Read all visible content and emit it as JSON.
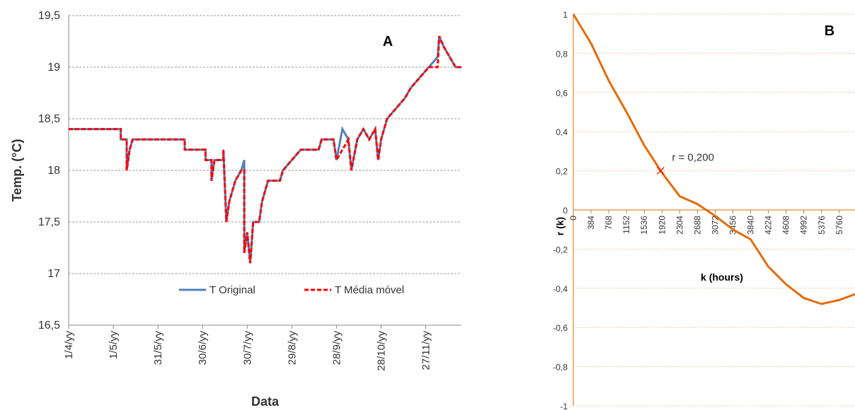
{
  "chart_data": [
    {
      "type": "line",
      "panel_label": "A",
      "xlabel": "Data",
      "ylabel": "Temp. (°C)",
      "x": [
        0,
        35,
        35,
        39,
        39,
        41,
        43,
        78,
        78,
        92,
        92,
        96,
        96,
        98,
        104,
        104,
        106,
        108,
        112,
        116,
        118,
        118,
        120,
        122,
        124,
        128,
        130,
        134,
        142,
        144,
        150,
        156,
        168,
        170,
        178,
        180,
        184,
        188,
        190,
        194,
        198,
        202,
        206,
        208,
        210,
        214,
        220,
        226,
        230,
        236,
        242,
        248,
        249,
        252,
        256,
        260,
        264
      ],
      "series": [
        {
          "name": "T Original",
          "color": "#4f81bd",
          "dashed": false,
          "values": [
            18.4,
            18.4,
            18.3,
            18.3,
            18.0,
            18.2,
            18.3,
            18.3,
            18.2,
            18.2,
            18.1,
            18.1,
            17.9,
            18.1,
            18.1,
            18.2,
            17.5,
            17.7,
            17.9,
            18.0,
            18.1,
            17.2,
            17.4,
            17.1,
            17.5,
            17.5,
            17.7,
            17.9,
            17.9,
            18.0,
            18.1,
            18.2,
            18.2,
            18.3,
            18.3,
            18.1,
            18.4,
            18.3,
            18.0,
            18.3,
            18.4,
            18.3,
            18.4,
            18.1,
            18.3,
            18.5,
            18.6,
            18.7,
            18.8,
            18.9,
            19.0,
            19.1,
            19.3,
            19.2,
            19.1,
            19.0,
            19.0
          ]
        },
        {
          "name": "T Média móvel",
          "color": "#ff0000",
          "dashed": true,
          "values": [
            18.4,
            18.4,
            18.3,
            18.3,
            18.0,
            18.2,
            18.3,
            18.3,
            18.2,
            18.2,
            18.1,
            18.1,
            17.9,
            18.1,
            18.1,
            18.2,
            17.5,
            17.7,
            17.9,
            18.0,
            18.0,
            17.2,
            17.4,
            17.1,
            17.5,
            17.5,
            17.7,
            17.9,
            17.9,
            18.0,
            18.1,
            18.2,
            18.2,
            18.3,
            18.3,
            18.1,
            18.2,
            18.3,
            18.0,
            18.3,
            18.4,
            18.3,
            18.4,
            18.1,
            18.3,
            18.5,
            18.6,
            18.7,
            18.8,
            18.9,
            19.0,
            19.0,
            19.3,
            19.2,
            19.1,
            19.0,
            19.0
          ]
        }
      ],
      "xlim": [
        0,
        264
      ],
      "xticks": [
        {
          "value": 0,
          "label": "1/4/yy"
        },
        {
          "value": 30,
          "label": "1/5/yy"
        },
        {
          "value": 60,
          "label": "31/5/yy"
        },
        {
          "value": 90,
          "label": "30/6/yy"
        },
        {
          "value": 120,
          "label": "30/7/yy"
        },
        {
          "value": 150,
          "label": "29/8/yy"
        },
        {
          "value": 180,
          "label": "28/9/yy"
        },
        {
          "value": 210,
          "label": "28/10/yy"
        },
        {
          "value": 240,
          "label": "27/11/yy"
        }
      ],
      "ylim": [
        16.5,
        19.5
      ],
      "yticks": [
        {
          "value": 16.5,
          "label": "16,5"
        },
        17,
        {
          "value": 17.5,
          "label": "17,5"
        },
        18,
        {
          "value": 18.5,
          "label": "18,5"
        },
        19,
        {
          "value": 19.5,
          "label": "19,5"
        }
      ],
      "grid": true,
      "legend": "lower center"
    },
    {
      "type": "line",
      "panel_label": "B",
      "xlabel": "k (hours)",
      "ylabel": "r (k)",
      "x": [
        0,
        384,
        768,
        1152,
        1536,
        1920,
        2304,
        2688,
        3072,
        3456,
        3840,
        4224,
        4608,
        4992,
        5376,
        5760,
        6100
      ],
      "series": [
        {
          "name": "r (k)",
          "color": "#e46c0a",
          "dashed": false,
          "values": [
            1,
            0.85,
            0.66,
            0.5,
            0.33,
            0.19,
            0.07,
            0.03,
            -0.03,
            -0.1,
            -0.15,
            -0.29,
            -0.38,
            -0.45,
            -0.48,
            -0.46,
            -0.43
          ]
        }
      ],
      "annotation": {
        "text": "r = 0,200",
        "x": 1890,
        "y": 0.2
      },
      "xlim": [
        0,
        6100
      ],
      "xticks": [
        0,
        384,
        768,
        1152,
        1536,
        1920,
        2304,
        2688,
        3072,
        3456,
        3840,
        4224,
        4608,
        4992,
        5376,
        5760
      ],
      "ylim": [
        -1,
        1
      ],
      "yticks": [
        -1,
        {
          "value": -0.8,
          "label": "-0,8"
        },
        {
          "value": -0.6,
          "label": "-0,6"
        },
        {
          "value": -0.4,
          "label": "-0,4"
        },
        {
          "value": -0.2,
          "label": "-0,2"
        },
        0,
        {
          "value": 0.2,
          "label": "0,2"
        },
        {
          "value": 0.4,
          "label": "0,4"
        },
        {
          "value": 0.6,
          "label": "0,6"
        },
        {
          "value": 0.8,
          "label": "0,8"
        },
        1
      ],
      "grid": true
    }
  ]
}
